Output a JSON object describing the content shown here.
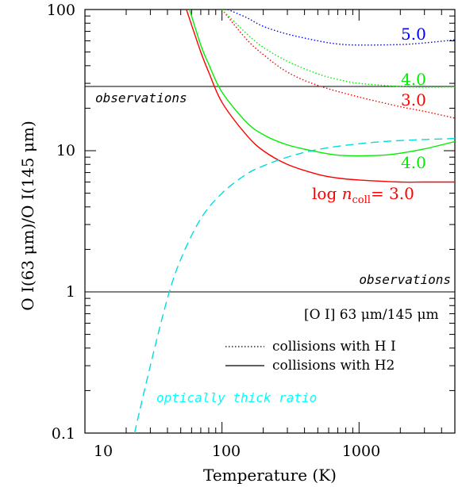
{
  "chart_data": {
    "type": "line",
    "xlabel": "Temperature (K)",
    "ylabel": "O I(63 μm)/O I(145 μm)",
    "xscale": "log",
    "yscale": "log",
    "xlim": [
      10,
      5000
    ],
    "ylim": [
      0.1,
      100
    ],
    "x_ticks": [
      "10",
      "100",
      "1000"
    ],
    "y_ticks": [
      "0.1",
      "1",
      "10",
      "100"
    ],
    "hlines": [
      {
        "y": 28.5,
        "label": "observations",
        "label_pos": "upper-left"
      },
      {
        "y": 1.0,
        "label": "observations",
        "label_pos": "right"
      }
    ],
    "legend": {
      "title": "[O I] 63 μm/145 μm",
      "entries": [
        {
          "style": "dotted",
          "label": "collisions with H I"
        },
        {
          "style": "solid",
          "label": "collisions with H2"
        }
      ]
    },
    "series": [
      {
        "color": "#ff0000",
        "dash": "solid",
        "label": "log n_coll = 3.0",
        "x": [
          55,
          70,
          80,
          100,
          150,
          200,
          300,
          500,
          700,
          1000,
          2000,
          3000,
          5000
        ],
        "y": [
          100,
          50,
          36,
          22,
          13,
          10,
          8,
          6.8,
          6.4,
          6.2,
          6.0,
          6.0,
          6.0
        ]
      },
      {
        "color": "#00ee00",
        "dash": "solid",
        "label": "4.0",
        "x": [
          58,
          70,
          80,
          100,
          150,
          200,
          300,
          500,
          700,
          1000,
          1500,
          2000,
          3000,
          5000
        ],
        "y": [
          100,
          56,
          41,
          26,
          16,
          13,
          11,
          9.8,
          9.3,
          9.2,
          9.3,
          9.6,
          10.3,
          11.6
        ]
      },
      {
        "color": "#ff0000",
        "dash": "dotted",
        "label": "3.0",
        "x": [
          100,
          150,
          200,
          300,
          500,
          1000,
          2000,
          3000,
          5000
        ],
        "y": [
          100,
          62,
          48,
          36,
          29,
          24,
          20.5,
          19,
          17
        ]
      },
      {
        "color": "#00ee00",
        "dash": "dotted",
        "label": "4.0",
        "x": [
          100,
          150,
          200,
          300,
          500,
          700,
          1000,
          2000,
          3000,
          5000
        ],
        "y": [
          100,
          68,
          54,
          43,
          35,
          32,
          30,
          28.5,
          28.2,
          28.3
        ]
      },
      {
        "color": "#0000ff",
        "dash": "dotted",
        "label": "5.0",
        "x": [
          110,
          150,
          200,
          300,
          500,
          700,
          1000,
          2000,
          3000,
          5000
        ],
        "y": [
          100,
          88,
          76,
          67,
          60,
          57,
          56,
          56.5,
          58,
          61
        ]
      },
      {
        "color": "#00dddd",
        "dash": "dashed",
        "label": "optically thick ratio",
        "x": [
          23,
          30,
          40,
          50,
          70,
          100,
          150,
          200,
          300,
          500,
          1000,
          2000,
          5000
        ],
        "y": [
          0.1,
          0.3,
          0.9,
          1.7,
          3.3,
          5.0,
          6.8,
          7.8,
          9.0,
          10.2,
          11.2,
          11.8,
          12.2
        ]
      }
    ],
    "annotations": [
      {
        "text": "observations"
      },
      {
        "text": "observations"
      },
      {
        "text": "optically thick ratio",
        "color": "#00ffff"
      }
    ],
    "curve_labels": [
      {
        "text": "5.0",
        "color": "#0000ff"
      },
      {
        "text": "4.0",
        "color": "#00ee00"
      },
      {
        "text": "3.0",
        "color": "#ff0000"
      },
      {
        "text": "4.0",
        "color": "#00ee00"
      },
      {
        "prefix": "log ",
        "var": "n",
        "sub": "coll",
        "suffix": "= 3.0",
        "color": "#ff0000"
      }
    ]
  }
}
